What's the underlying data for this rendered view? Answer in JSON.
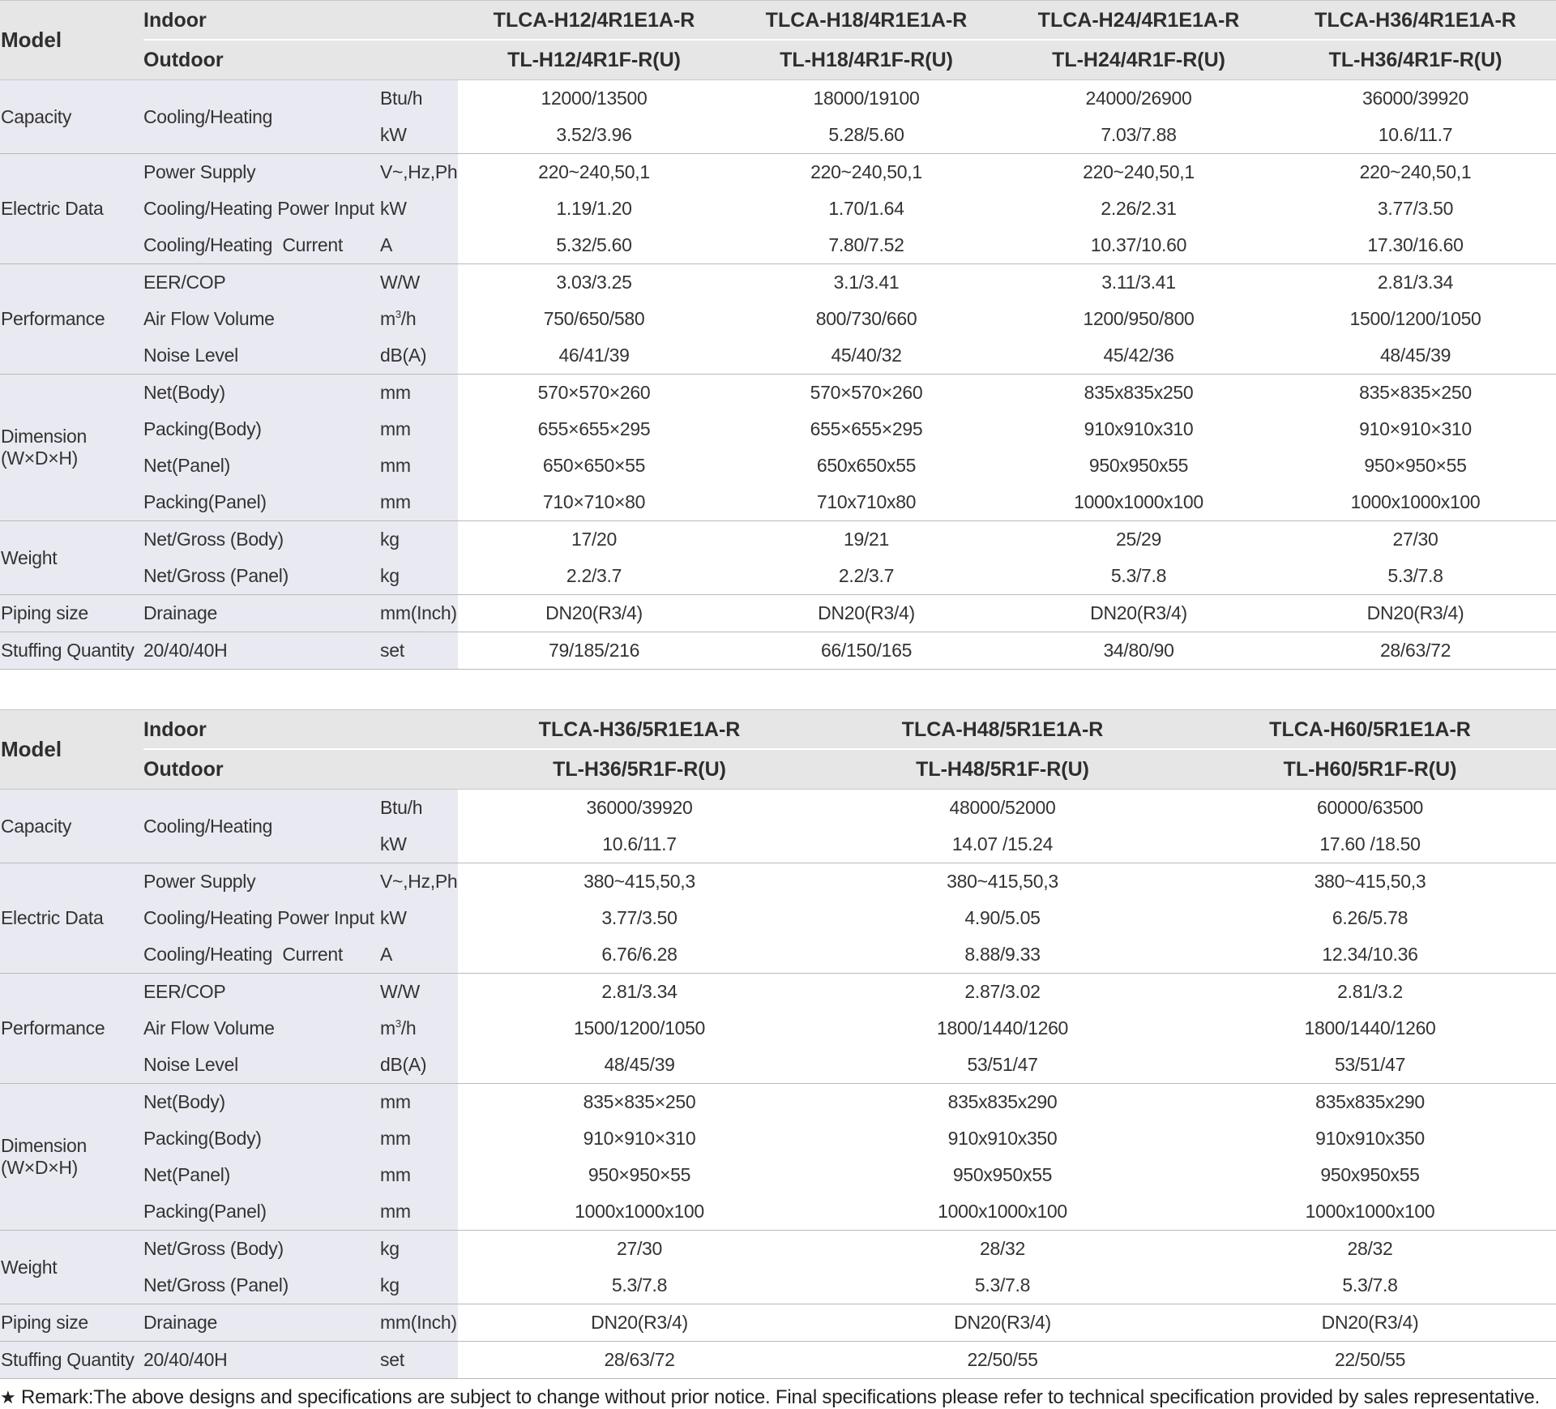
{
  "labels": {
    "model": "Model",
    "indoor": "Indoor",
    "outdoor": "Outdoor",
    "capacity": "Capacity",
    "cooling_heating": "Cooling/Heating",
    "btuh": "Btu/h",
    "kw": "kW",
    "electric_data": "Electric Data",
    "power_supply": "Power Supply",
    "vhzph": "V~,Hz,Ph",
    "power_input": "Cooling/Heating Power Input",
    "current": "Cooling/Heating  Current",
    "amp": "A",
    "performance": "Performance",
    "eer_cop": "EER/COP",
    "ww": "W/W",
    "air_flow": "Air Flow Volume",
    "m3h_base": "m",
    "m3h_sup": "3",
    "m3h_tail": "/h",
    "noise": "Noise Level",
    "dba": "dB(A)",
    "dimension": "Dimension",
    "dimension_sub": "(W×D×H)",
    "net_body": "Net(Body)",
    "packing_body": "Packing(Body)",
    "net_panel": "Net(Panel)",
    "packing_panel": "Packing(Panel)",
    "mm": "mm",
    "weight": "Weight",
    "ng_body": "Net/Gross (Body)",
    "ng_panel": "Net/Gross (Panel)",
    "kg": "kg",
    "piping": "Piping size",
    "drainage": "Drainage",
    "mm_inch": "mm(Inch)",
    "stuffing": "Stuffing Quantity",
    "container": "20/40/40H",
    "set": "set"
  },
  "table1": {
    "indoor": [
      "TLCA-H12/4R1E1A-R",
      "TLCA-H18/4R1E1A-R",
      "TLCA-H24/4R1E1A-R",
      "TLCA-H36/4R1E1A-R"
    ],
    "outdoor": [
      "TL-H12/4R1F-R(U)",
      "TL-H18/4R1F-R(U)",
      "TL-H24/4R1F-R(U)",
      "TL-H36/4R1F-R(U)"
    ],
    "cap_btuh": [
      "12000/13500",
      "18000/19100",
      "24000/26900",
      "36000/39920"
    ],
    "cap_kw": [
      "3.52/3.96",
      "5.28/5.60",
      "7.03/7.88",
      "10.6/11.7"
    ],
    "power_supply": [
      "220~240,50,1",
      "220~240,50,1",
      "220~240,50,1",
      "220~240,50,1"
    ],
    "power_input": [
      "1.19/1.20",
      "1.70/1.64",
      "2.26/2.31",
      "3.77/3.50"
    ],
    "current": [
      "5.32/5.60",
      "7.80/7.52",
      "10.37/10.60",
      "17.30/16.60"
    ],
    "eer_cop": [
      "3.03/3.25",
      "3.1/3.41",
      "3.11/3.41",
      "2.81/3.34"
    ],
    "air_flow": [
      "750/650/580",
      "800/730/660",
      "1200/950/800",
      "1500/1200/1050"
    ],
    "noise": [
      "46/41/39",
      "45/40/32",
      "45/42/36",
      "48/45/39"
    ],
    "net_body": [
      "570×570×260",
      "570×570×260",
      "835x835x250",
      "835×835×250"
    ],
    "packing_body": [
      "655×655×295",
      "655×655×295",
      "910x910x310",
      "910×910×310"
    ],
    "net_panel": [
      "650×650×55",
      "650x650x55",
      "950x950x55",
      "950×950×55"
    ],
    "packing_panel": [
      "710×710×80",
      "710x710x80",
      "1000x1000x100",
      "1000x1000x100"
    ],
    "ng_body": [
      "17/20",
      "19/21",
      "25/29",
      "27/30"
    ],
    "ng_panel": [
      "2.2/3.7",
      "2.2/3.7",
      "5.3/7.8",
      "5.3/7.8"
    ],
    "drainage": [
      "DN20(R3/4)",
      "DN20(R3/4)",
      "DN20(R3/4)",
      "DN20(R3/4)"
    ],
    "stuffing": [
      "79/185/216",
      "66/150/165",
      "34/80/90",
      "28/63/72"
    ]
  },
  "table2": {
    "indoor": [
      "TLCA-H36/5R1E1A-R",
      "TLCA-H48/5R1E1A-R",
      "TLCA-H60/5R1E1A-R"
    ],
    "outdoor": [
      "TL-H36/5R1F-R(U)",
      "TL-H48/5R1F-R(U)",
      "TL-H60/5R1F-R(U)"
    ],
    "cap_btuh": [
      "36000/39920",
      "48000/52000",
      "60000/63500"
    ],
    "cap_kw": [
      "10.6/11.7",
      "14.07 /15.24",
      "17.60 /18.50"
    ],
    "power_supply": [
      "380~415,50,3",
      "380~415,50,3",
      "380~415,50,3"
    ],
    "power_input": [
      "3.77/3.50",
      "4.90/5.05",
      "6.26/5.78"
    ],
    "current": [
      "6.76/6.28",
      "8.88/9.33",
      "12.34/10.36"
    ],
    "eer_cop": [
      "2.81/3.34",
      "2.87/3.02",
      "2.81/3.2"
    ],
    "air_flow": [
      "1500/1200/1050",
      "1800/1440/1260",
      "1800/1440/1260"
    ],
    "noise": [
      "48/45/39",
      "53/51/47",
      "53/51/47"
    ],
    "net_body": [
      "835×835×250",
      "835x835x290",
      "835x835x290"
    ],
    "packing_body": [
      "910×910×310",
      "910x910x350",
      "910x910x350"
    ],
    "net_panel": [
      "950×950×55",
      "950x950x55",
      "950x950x55"
    ],
    "packing_panel": [
      "1000x1000x100",
      "1000x1000x100",
      "1000x1000x100"
    ],
    "ng_body": [
      "27/30",
      "28/32",
      "28/32"
    ],
    "ng_panel": [
      "5.3/7.8",
      "5.3/7.8",
      "5.3/7.8"
    ],
    "drainage": [
      "DN20(R3/4)",
      "DN20(R3/4)",
      "DN20(R3/4)"
    ],
    "stuffing": [
      "28/63/72",
      "22/50/55",
      "22/50/55"
    ]
  },
  "remark": {
    "star": "★",
    "text": "Remark:The above designs and specifications are subject to change without prior notice. Final specifications please refer to technical specification provided by sales representative."
  }
}
